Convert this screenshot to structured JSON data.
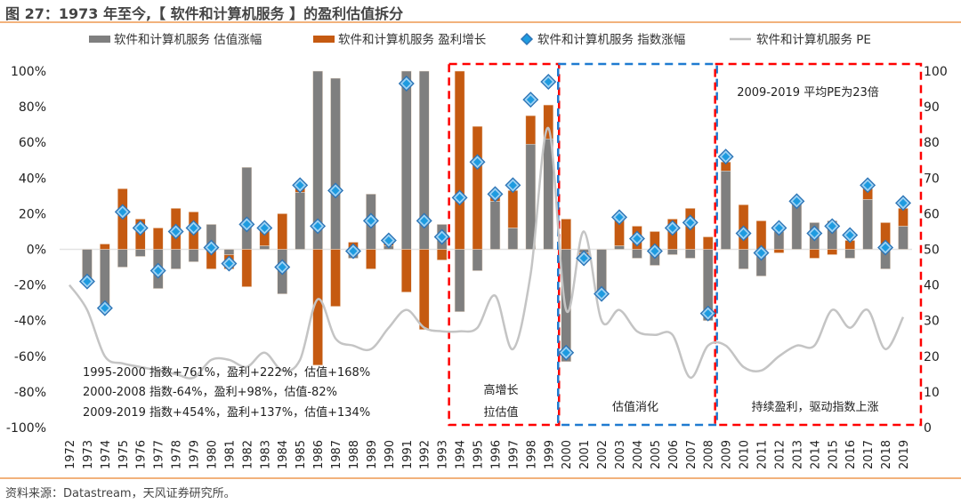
{
  "title": "图 27：1973 年至今,【 软件和计算机服务 】的盈利估值拆分",
  "source": "资料来源：Datastream，天风证券研究所。",
  "chart_data": {
    "type": "bar",
    "subtype": "stacked bar + scatter + line (dual axis)",
    "title": "图 27：1973 年至今,【 软件和计算机服务 】的盈利估值拆分",
    "legend_position": "top",
    "legend": [
      {
        "name": "软件和计算机服务 估值涨幅",
        "kind": "bar",
        "color": "#7f7f7f"
      },
      {
        "name": "软件和计算机服务 盈利增长",
        "kind": "bar",
        "color": "#c55a11"
      },
      {
        "name": "软件和计算机服务 指数涨幅",
        "kind": "marker",
        "color": "#1e9be0"
      },
      {
        "name": "软件和计算机服务 PE",
        "kind": "line",
        "color": "#bfbfbf"
      }
    ],
    "categories": [
      "1972",
      "1973",
      "1974",
      "1975",
      "1976",
      "1977",
      "1978",
      "1979",
      "1980",
      "1981",
      "1982",
      "1983",
      "1984",
      "1985",
      "1986",
      "1987",
      "1988",
      "1989",
      "1990",
      "1991",
      "1992",
      "1993",
      "1994",
      "1995",
      "1996",
      "1997",
      "1998",
      "1999",
      "2000",
      "2001",
      "2002",
      "2003",
      "2004",
      "2005",
      "2006",
      "2007",
      "2008",
      "2009",
      "2010",
      "2011",
      "2012",
      "2013",
      "2014",
      "2015",
      "2016",
      "2017",
      "2018",
      "2019"
    ],
    "left_axis": {
      "ticks": [
        "100%",
        "80%",
        "60%",
        "40%",
        "20%",
        "0%",
        "-20%",
        "-40%",
        "-60%",
        "-80%",
        "-100%"
      ],
      "ylim": [
        -100,
        100
      ],
      "unit": "%"
    },
    "right_axis": {
      "ticks": [
        "100",
        "90",
        "80",
        "70",
        "60",
        "50",
        "40",
        "30",
        "20",
        "10",
        "0"
      ],
      "ylim": [
        0,
        100
      ]
    },
    "series": [
      {
        "name": "软件和计算机服务 估值涨幅",
        "axis": "left",
        "values": [
          null,
          -18,
          -33,
          -10,
          -4,
          -22,
          -11,
          -7,
          14,
          -3,
          46,
          2,
          -25,
          32,
          100,
          96,
          -5,
          31,
          2,
          100,
          100,
          14,
          -35,
          -12,
          27,
          12,
          59,
          62,
          -63,
          -2,
          -26,
          2,
          -5,
          -9,
          -3,
          -5,
          -40,
          44,
          -11,
          -15,
          10,
          28,
          15,
          16,
          -5,
          28,
          -11,
          13
        ]
      },
      {
        "name": "软件和计算机服务 盈利增长",
        "axis": "left",
        "values": [
          null,
          0,
          3,
          34,
          17,
          12,
          23,
          21,
          -11,
          -8,
          -21,
          11,
          20,
          4,
          -65,
          -32,
          4,
          -11,
          3,
          -24,
          -45,
          -6,
          100,
          69,
          5,
          21,
          16,
          19,
          17,
          -2,
          0,
          15,
          13,
          10,
          17,
          23,
          7,
          5,
          25,
          16,
          -2,
          0,
          -5,
          -3,
          5,
          6,
          15,
          10
        ]
      },
      {
        "name": "软件和计算机服务 指数涨幅",
        "axis": "left",
        "values": [
          null,
          -18,
          -33,
          21,
          12,
          -12,
          10,
          12,
          1,
          -8,
          14,
          12,
          -10,
          36,
          13,
          33,
          -1,
          16,
          5,
          93,
          16,
          7,
          29,
          49,
          31,
          36,
          84,
          94,
          -58,
          -5,
          -25,
          18,
          6,
          -1,
          12,
          15,
          -36,
          52,
          9,
          -2,
          12,
          27,
          9,
          13,
          8,
          36,
          1,
          26
        ]
      },
      {
        "name": "软件和计算机服务 PE",
        "axis": "right",
        "values": [
          40,
          33,
          20,
          18,
          17,
          16,
          15,
          14,
          19,
          19,
          17,
          21,
          16,
          19,
          36,
          25,
          23,
          22,
          28,
          33,
          28,
          27,
          27,
          28,
          37,
          22,
          43,
          84,
          33,
          55,
          30,
          33,
          27,
          26,
          26,
          14,
          23,
          23,
          17,
          16,
          20,
          23,
          23,
          33,
          28,
          33,
          22,
          31
        ]
      }
    ],
    "annotations": [
      {
        "text": "1995-2000  指数+761%，盈利+222%，估值+168%"
      },
      {
        "text": "2000-2008  指数-64%，盈利+98%，估值-82%"
      },
      {
        "text": "2009-2019  指数+454%，盈利+137%，估值+134%"
      },
      {
        "text": "高增长",
        "box": "red",
        "range": [
          "1994",
          "1999"
        ]
      },
      {
        "text": "拉估值",
        "box": "red",
        "range": [
          "1994",
          "1999"
        ]
      },
      {
        "text": "估值消化",
        "box": "blue",
        "range": [
          "2000",
          "2008"
        ]
      },
      {
        "text": "2009-2019  平均PE为23倍",
        "box": "red",
        "range": [
          "2009",
          "2019"
        ]
      },
      {
        "text": "持续盈利，驱动指数上涨",
        "box": "red",
        "range": [
          "2009",
          "2019"
        ]
      }
    ],
    "boxes": [
      {
        "color": "#ff0000",
        "from": "1994",
        "to": "1999",
        "labels": [
          3,
          4
        ]
      },
      {
        "color": "#1f7bd0",
        "from": "2000",
        "to": "2008",
        "labels": [
          5
        ]
      },
      {
        "color": "#ff0000",
        "from": "2009",
        "to": "2019",
        "labels": [
          6,
          7
        ]
      }
    ]
  }
}
